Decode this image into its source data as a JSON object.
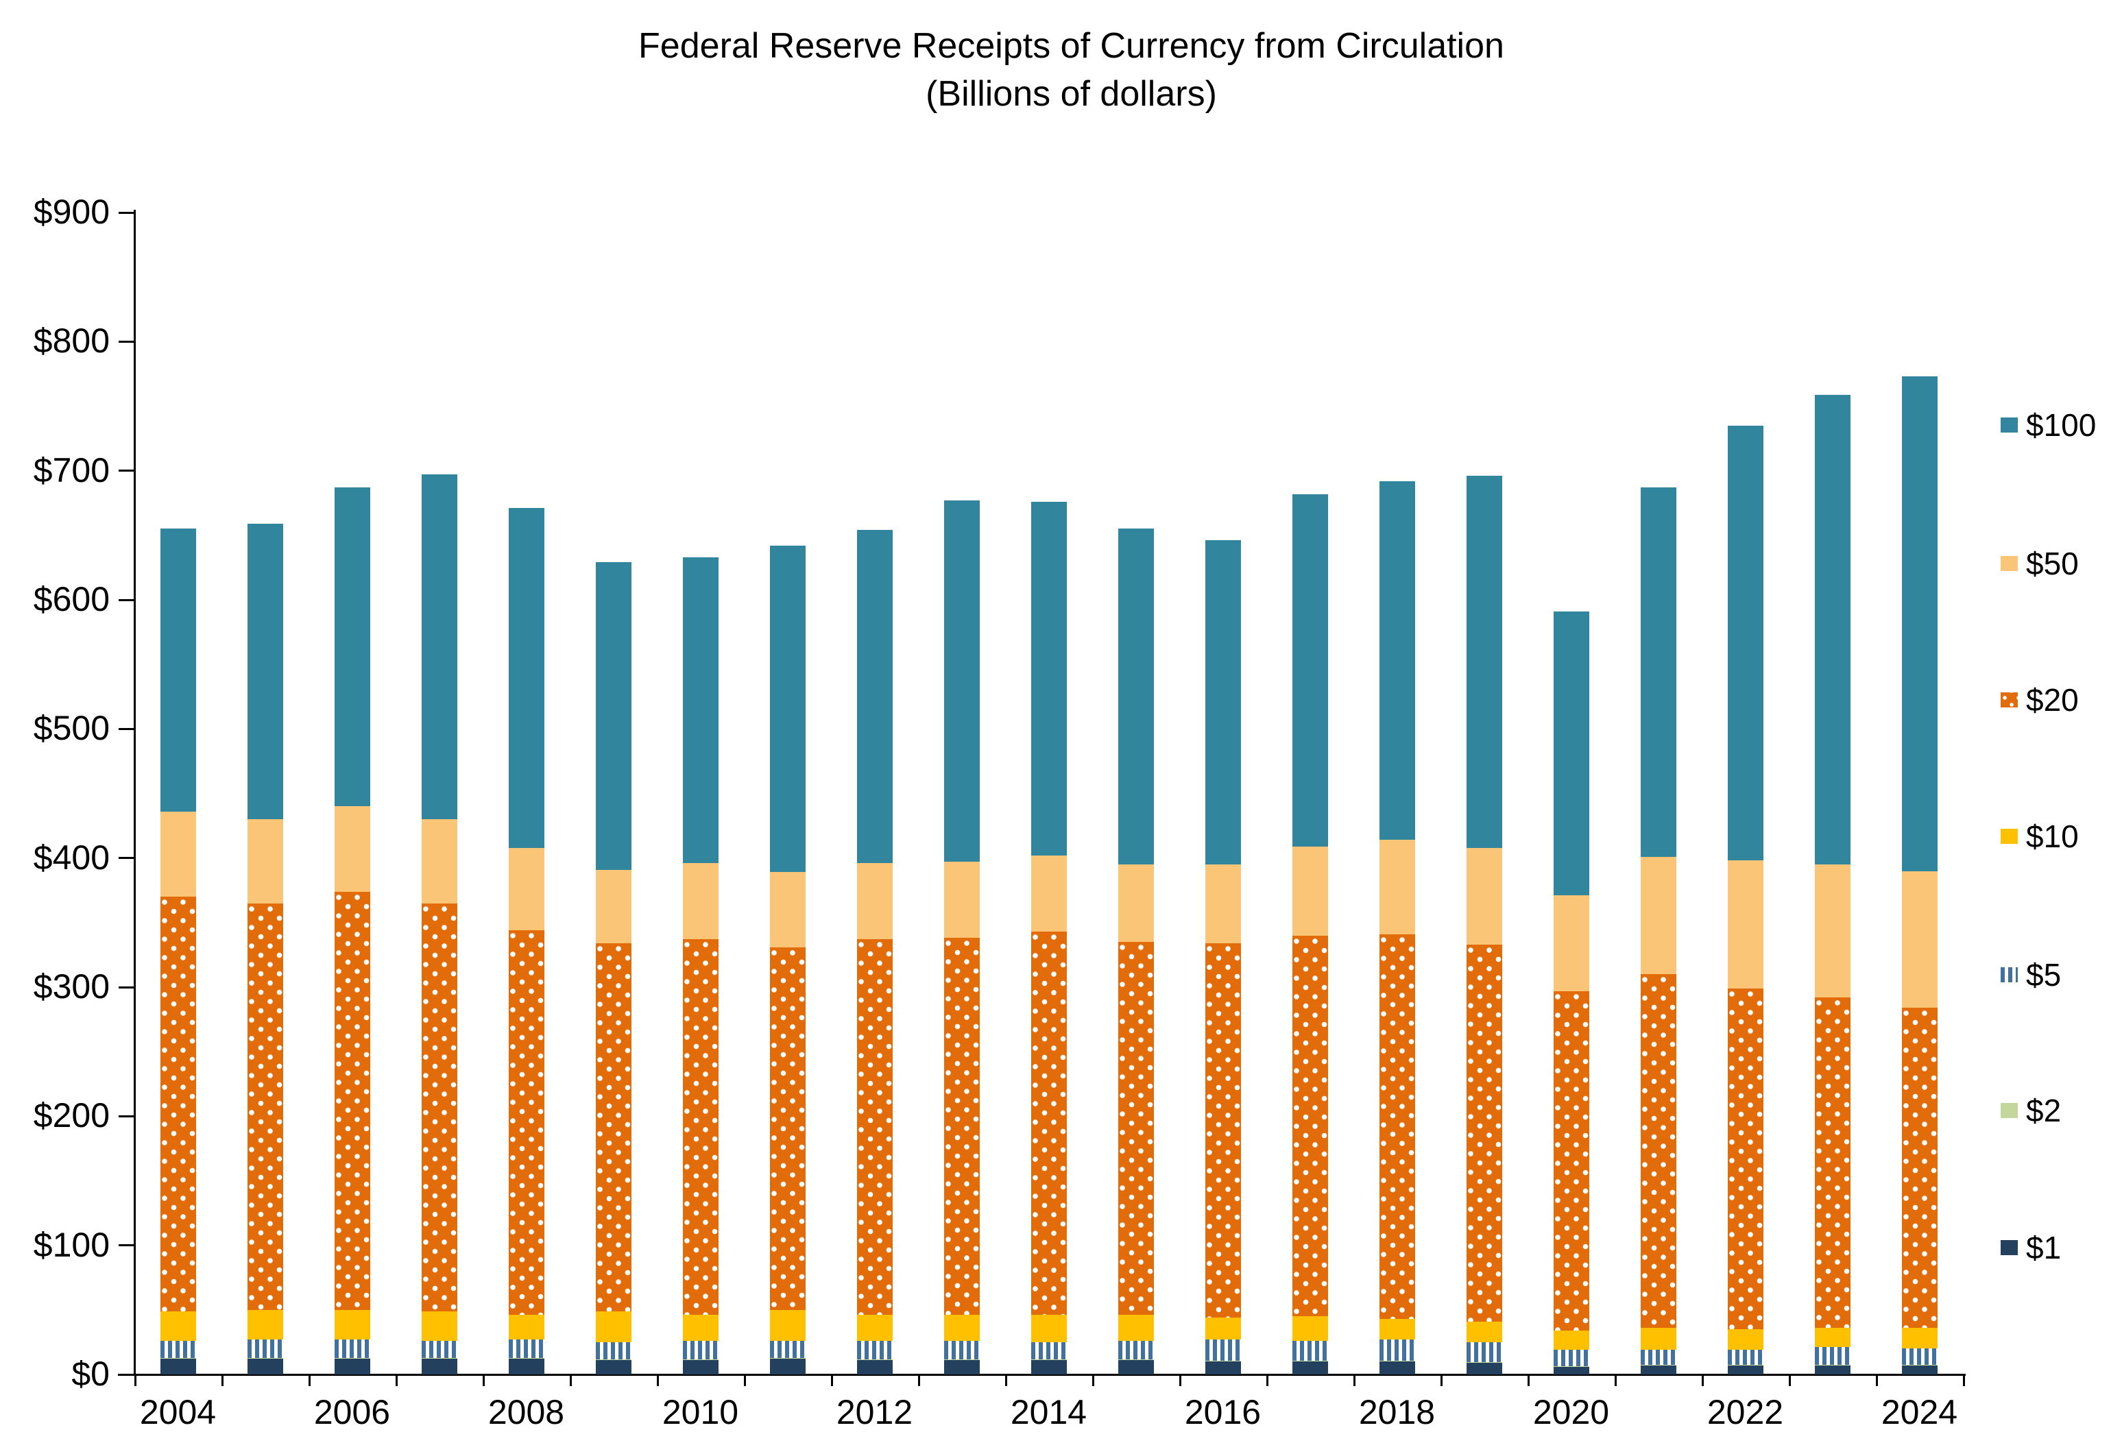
{
  "title": {
    "line1": "Federal Reserve Receipts of Currency from Circulation",
    "line2": "(Billions of dollars)"
  },
  "y_axis": {
    "tick_labels": [
      "$900",
      "$800",
      "$700",
      "$600",
      "$500",
      "$400",
      "$300",
      "$200",
      "$100",
      "$0"
    ],
    "min": 0,
    "max": 900,
    "step": 100
  },
  "x_axis": {
    "visible_labels": [
      "2004",
      "2006",
      "2008",
      "2010",
      "2012",
      "2014",
      "2016",
      "2018",
      "2020",
      "2022",
      "2024"
    ]
  },
  "legend": {
    "items": [
      {
        "label": "$100",
        "pattern": "solid"
      },
      {
        "label": "$50",
        "pattern": "solid"
      },
      {
        "label": "$20",
        "pattern": "dots"
      },
      {
        "label": "$10",
        "pattern": "solid"
      },
      {
        "label": "$5",
        "pattern": "stripes"
      },
      {
        "label": "$2",
        "pattern": "solid"
      },
      {
        "label": "$1",
        "pattern": "solid"
      }
    ]
  },
  "chart_data": {
    "type": "bar",
    "stacked": true,
    "title": "Federal Reserve Receipts of Currency from Circulation",
    "subtitle": "(Billions of dollars)",
    "xlabel": "",
    "ylabel": "",
    "ylim": [
      0,
      900
    ],
    "grid": false,
    "legend_position": "right",
    "categories": [
      "2004",
      "2005",
      "2006",
      "2007",
      "2008",
      "2009",
      "2010",
      "2011",
      "2012",
      "2013",
      "2014",
      "2015",
      "2016",
      "2017",
      "2018",
      "2019",
      "2020",
      "2021",
      "2022",
      "2023",
      "2024"
    ],
    "series": [
      {
        "name": "$1",
        "values": [
          12,
          12,
          12,
          12,
          12,
          11,
          11,
          12,
          11,
          11,
          11,
          11,
          10,
          10,
          10,
          9,
          6,
          7,
          7,
          7,
          7
        ]
      },
      {
        "name": "$2",
        "values": [
          0.5,
          0.5,
          0.5,
          0.5,
          0.5,
          0.5,
          0.5,
          0.5,
          0.5,
          0.5,
          0.5,
          0.5,
          0.5,
          0.5,
          0.5,
          0.5,
          0.5,
          0.5,
          0.5,
          0.5,
          0.5
        ]
      },
      {
        "name": "$5",
        "values": [
          13.5,
          14.5,
          14.5,
          13.5,
          14.5,
          13.5,
          14.5,
          13.5,
          14.5,
          14.5,
          13.5,
          14.5,
          16.5,
          15.5,
          16.5,
          15.5,
          12.5,
          11.5,
          11.5,
          13.5,
          12.5
        ]
      },
      {
        "name": "$10",
        "values": [
          23,
          23,
          23,
          23,
          19,
          24,
          20,
          24,
          20,
          20,
          21,
          20,
          17,
          19,
          16,
          16,
          15,
          17,
          16,
          15,
          16
        ]
      },
      {
        "name": "$20",
        "values": [
          321,
          315,
          324,
          316,
          298,
          285,
          291,
          281,
          291,
          292,
          297,
          289,
          290,
          295,
          298,
          292,
          263,
          274,
          264,
          256,
          248
        ]
      },
      {
        "name": "$50",
        "values": [
          66,
          65,
          66,
          65,
          64,
          57,
          59,
          58,
          59,
          59,
          59,
          60,
          61,
          69,
          73,
          75,
          74,
          91,
          99,
          103,
          106
        ]
      },
      {
        "name": "$100",
        "values": [
          219,
          229,
          247,
          267,
          263,
          238,
          237,
          253,
          258,
          280,
          274,
          260,
          251,
          273,
          278,
          288,
          220,
          286,
          337,
          364,
          383
        ]
      }
    ],
    "totals": [
      655,
      659,
      687,
      697,
      671,
      629,
      633,
      642,
      654,
      677,
      676,
      655,
      646,
      682,
      692,
      696,
      591,
      687,
      735,
      759,
      773
    ],
    "colors": {
      "$1": "#24405F",
      "$2": "#C3D69B",
      "$5": "#41719C",
      "$10": "#FFC000",
      "$20": "#E36C0A",
      "$50": "#FBC578",
      "$100": "#31859C",
      "axis": "#000000",
      "background": "#FFFFFF"
    }
  }
}
